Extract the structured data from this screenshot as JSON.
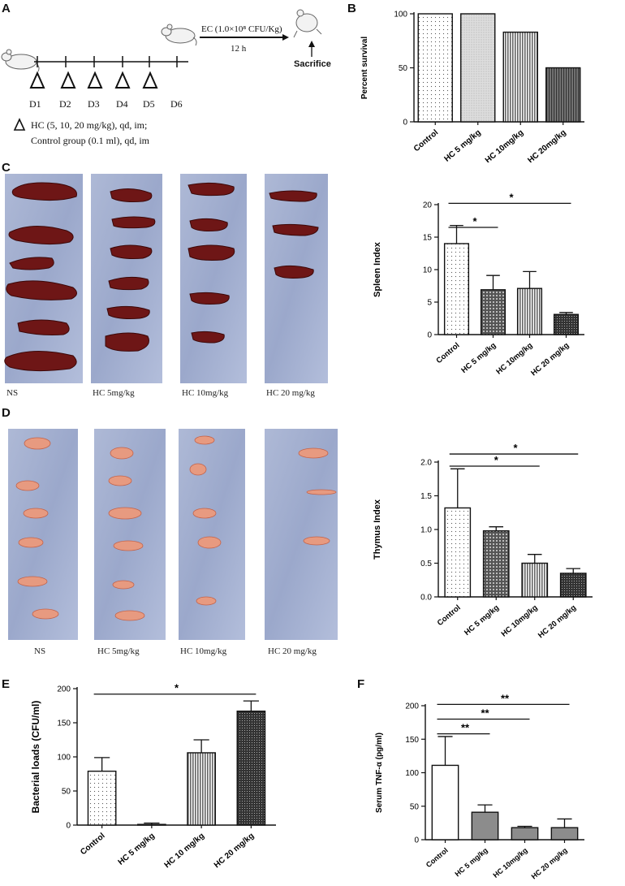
{
  "panels": {
    "A": {
      "letter": "A",
      "days": [
        "D1",
        "D2",
        "D3",
        "D4",
        "D5",
        "D6"
      ],
      "ec_label": "EC (1.0×10⁸ CFU/Kg)",
      "interval": "12 h",
      "sacrifice": "Sacrifice",
      "legend_line1": "HC (5, 10, 20 mg/kg),  qd, im;",
      "legend_line2": "Control group (0.1 ml), qd, im"
    },
    "B": {
      "letter": "B"
    },
    "C": {
      "letter": "C",
      "photo_labels": [
        "NS",
        "HC 5mg/kg",
        "HC 10mg/kg",
        "HC 20 mg/kg"
      ]
    },
    "D": {
      "letter": "D",
      "photo_labels": [
        "NS",
        "HC  5mg/kg",
        "HC  10mg/kg",
        "HC  20 mg/kg"
      ]
    },
    "E": {
      "letter": "E"
    },
    "F": {
      "letter": "F"
    }
  },
  "chart_data": [
    {
      "id": "B",
      "type": "bar",
      "ylabel": "Percent survival",
      "categories": [
        "Control",
        "HC 5 mg/kg",
        "HC 10mg/kg",
        "HC 20mg/kg"
      ],
      "values": [
        100,
        100,
        83,
        50
      ],
      "ylim": [
        0,
        100
      ],
      "yticks": [
        0,
        50,
        100
      ],
      "errors": null,
      "patterns": [
        "dots",
        "light",
        "vstripe",
        "dark"
      ],
      "significance": []
    },
    {
      "id": "C",
      "type": "bar",
      "ylabel": "Spleen Index",
      "categories": [
        "Control",
        "HC 5 mg/kg",
        "HC 10mg/kg",
        "HC 20 mg/kg"
      ],
      "values": [
        14.0,
        6.9,
        7.1,
        3.1
      ],
      "errors": [
        2.8,
        2.2,
        2.6,
        0.3
      ],
      "ylim": [
        0,
        20
      ],
      "yticks": [
        0,
        5,
        10,
        15,
        20
      ],
      "patterns": [
        "dots",
        "grid",
        "vstripe",
        "densegrid"
      ],
      "significance": [
        {
          "from": 0,
          "to": 1,
          "label": "*",
          "level": 16.5
        },
        {
          "from": 0,
          "to": 3,
          "label": "*",
          "level": 20.2
        }
      ]
    },
    {
      "id": "D",
      "type": "bar",
      "ylabel": "Thymus Index",
      "categories": [
        "Control",
        "HC 5 mg/kg",
        "HC 10mg/kg",
        "HC 20 mg/kg"
      ],
      "values": [
        1.32,
        0.98,
        0.5,
        0.35
      ],
      "errors": [
        0.58,
        0.06,
        0.13,
        0.07
      ],
      "ylim": [
        0,
        2.0
      ],
      "yticks": [
        "0.0",
        "0.5",
        "1.0",
        "1.5",
        "2.0"
      ],
      "patterns": [
        "dots",
        "grid",
        "vstripe",
        "densegrid"
      ],
      "significance": [
        {
          "from": 0,
          "to": 2,
          "label": "*",
          "level": 1.94
        },
        {
          "from": 0,
          "to": 3,
          "label": "*",
          "level": 2.12
        }
      ]
    },
    {
      "id": "E",
      "type": "bar",
      "ylabel": "Bacterial loads (CFU/ml)",
      "categories": [
        "Control",
        "HC 5 mg/kg",
        "HC 10 mg/kg",
        "HC 20 mg/kg"
      ],
      "values": [
        79,
        1,
        106,
        167
      ],
      "errors": [
        20,
        2,
        19,
        15
      ],
      "ylim": [
        0,
        200
      ],
      "yticks": [
        0,
        50,
        100,
        150,
        200
      ],
      "patterns": [
        "dots",
        "none",
        "vstripe",
        "densegrid"
      ],
      "significance": [
        {
          "from": 0,
          "to": 3,
          "label": "*",
          "level": 192
        }
      ]
    },
    {
      "id": "F",
      "type": "bar",
      "ylabel": "Serum TNF-α (pg/ml)",
      "categories": [
        "Control",
        "HC 5 mg/kg",
        "HC 10mg/kg",
        "HC 20 mg/kg"
      ],
      "values": [
        111,
        41,
        18,
        18
      ],
      "errors": [
        43,
        11,
        2,
        13
      ],
      "ylim": [
        0,
        200
      ],
      "yticks": [
        0,
        50,
        100,
        150,
        200
      ],
      "patterns": [
        "white",
        "gray",
        "gray",
        "gray"
      ],
      "significance": [
        {
          "from": 0,
          "to": 1,
          "label": "**",
          "level": 158
        },
        {
          "from": 0,
          "to": 2,
          "label": "**",
          "level": 180
        },
        {
          "from": 0,
          "to": 3,
          "label": "**",
          "level": 202
        }
      ]
    }
  ]
}
